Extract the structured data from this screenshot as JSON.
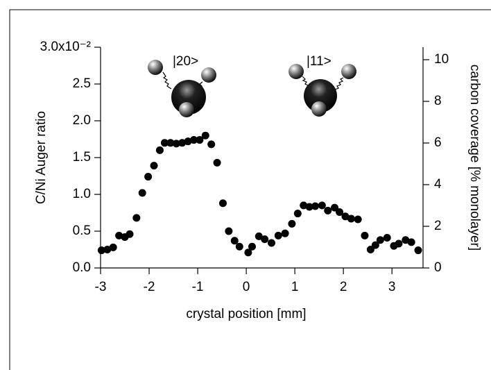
{
  "chart_data": {
    "type": "scatter",
    "x_label": "crystal position [mm]",
    "y_label": "C/Ni Auger ratio",
    "y2_label": "carbon coverage [% monolayer]",
    "annotations": [
      "|20>",
      "|11>"
    ],
    "xlim": [
      -3,
      3.64
    ],
    "xticks": [
      -3,
      -2,
      -1,
      0,
      1,
      2,
      3
    ],
    "ylim": [
      0,
      3
    ],
    "yticks": [
      {
        "value": 0,
        "label": "0.0"
      },
      {
        "value": 0.5,
        "label": "0.5"
      },
      {
        "value": 1,
        "label": "1.0"
      },
      {
        "value": 1.5,
        "label": "1.5"
      },
      {
        "value": 2,
        "label": "2.0"
      },
      {
        "value": 2.5,
        "label": "2.5"
      },
      {
        "value": 3,
        "label": "3.0x10⁻²"
      }
    ],
    "y2lim": [
      0,
      10.6
    ],
    "y2ticks": [
      0,
      2,
      4,
      6,
      8,
      10
    ],
    "series": [
      {
        "color": "#000000",
        "x": [
          -2.98,
          -2.86,
          -2.74,
          -2.62,
          -2.5,
          -2.4,
          -2.26,
          -2.14,
          -2.02,
          -1.9,
          -1.78,
          -1.68,
          -1.56,
          -1.44,
          -1.32,
          -1.2,
          -1.08,
          -0.96,
          -0.84,
          -0.72,
          -0.6,
          -0.48,
          -0.36,
          -0.24,
          -0.14,
          0.04,
          0.12,
          0.26,
          0.38,
          0.52,
          0.66,
          0.8,
          0.94,
          1.06,
          1.18,
          1.3,
          1.42,
          1.56,
          1.68,
          1.82,
          1.92,
          2.04,
          2.16,
          2.3,
          2.44,
          2.56,
          2.66,
          2.76,
          2.9,
          3.04,
          3.14,
          3.28,
          3.4,
          3.54
        ],
        "values": [
          0.24,
          0.25,
          0.28,
          0.44,
          0.42,
          0.46,
          0.68,
          1.02,
          1.24,
          1.39,
          1.6,
          1.7,
          1.7,
          1.69,
          1.7,
          1.72,
          1.74,
          1.74,
          1.8,
          1.68,
          1.43,
          0.88,
          0.5,
          0.37,
          0.29,
          0.21,
          0.29,
          0.43,
          0.39,
          0.34,
          0.44,
          0.47,
          0.6,
          0.74,
          0.85,
          0.83,
          0.84,
          0.85,
          0.78,
          0.82,
          0.76,
          0.7,
          0.67,
          0.66,
          0.44,
          0.25,
          0.31,
          0.38,
          0.41,
          0.3,
          0.33,
          0.38,
          0.35,
          0.24
        ]
      }
    ]
  }
}
